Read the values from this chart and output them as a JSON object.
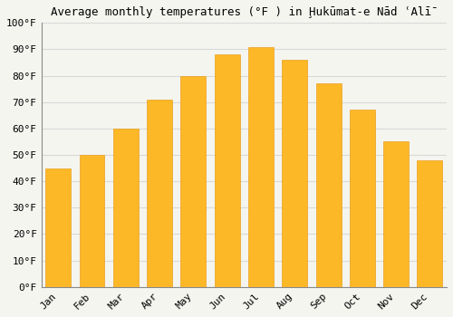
{
  "title": "Average monthly temperatures (°F ) in Ḩukūmat-e Nād ʿAlī̄",
  "months": [
    "Jan",
    "Feb",
    "Mar",
    "Apr",
    "May",
    "Jun",
    "Jul",
    "Aug",
    "Sep",
    "Oct",
    "Nov",
    "Dec"
  ],
  "values": [
    45,
    50,
    60,
    71,
    80,
    88,
    91,
    86,
    77,
    67,
    55,
    48
  ],
  "bar_color": "#FDB827",
  "bar_edge_color": "#E8A020",
  "ylim": [
    0,
    100
  ],
  "yticks": [
    0,
    10,
    20,
    30,
    40,
    50,
    60,
    70,
    80,
    90,
    100
  ],
  "ytick_labels": [
    "0°F",
    "10°F",
    "20°F",
    "30°F",
    "40°F",
    "50°F",
    "60°F",
    "70°F",
    "80°F",
    "90°F",
    "100°F"
  ],
  "background_color": "#f5f5f0",
  "grid_color": "#d8d8d8",
  "title_fontsize": 9,
  "tick_fontsize": 8,
  "font_family": "monospace"
}
